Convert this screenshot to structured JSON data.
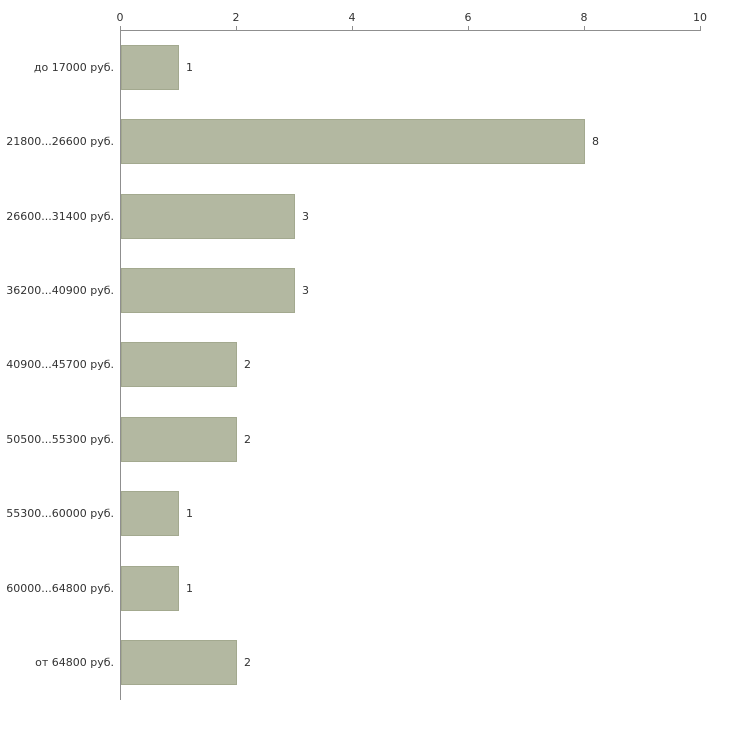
{
  "chart_data": {
    "type": "bar",
    "orientation": "horizontal",
    "title": "",
    "xlabel": "",
    "ylabel": "",
    "categories": [
      "до 17000 руб.",
      "21800...26600 руб.",
      "26600...31400 руб.",
      "36200...40900 руб.",
      "40900...45700 руб.",
      "50500...55300 руб.",
      "55300...60000 руб.",
      "60000...64800 руб.",
      "от 64800 руб."
    ],
    "values": [
      1,
      8,
      3,
      3,
      2,
      2,
      1,
      1,
      2
    ],
    "xlim": [
      0,
      10
    ],
    "xticks": [
      0,
      2,
      4,
      6,
      8,
      10
    ],
    "grid": false,
    "legend": false,
    "bar_color": "#b3b8a1",
    "bar_border_color": "#a3a98f",
    "axis_color": "#8f8f8f",
    "text_color": "#333333"
  },
  "layout_hints": {
    "value_labels_position": "right-of-bar",
    "axis_position": "top"
  }
}
